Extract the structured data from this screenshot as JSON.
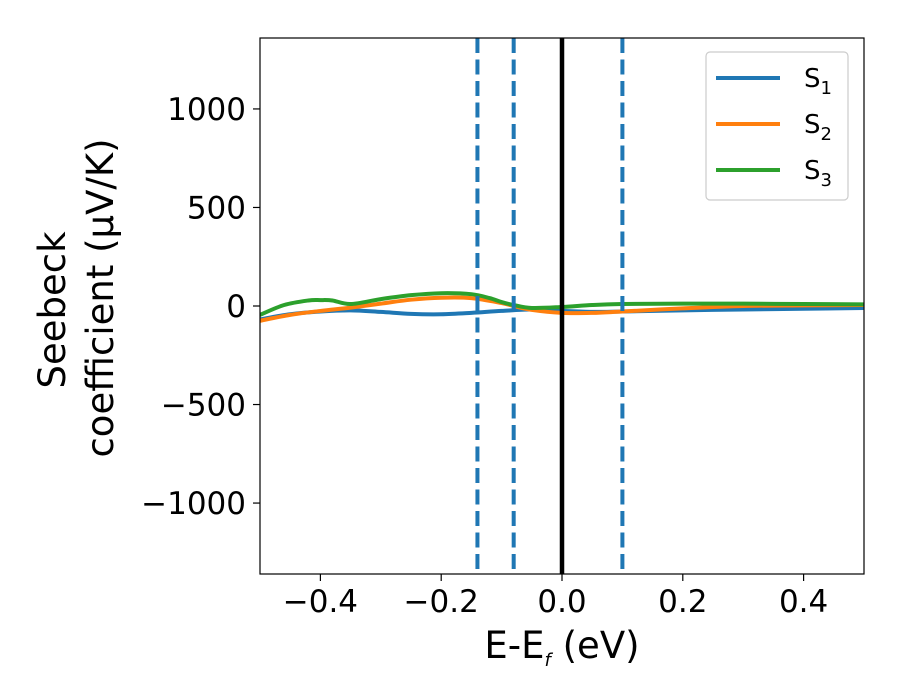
{
  "chart_data": {
    "type": "line",
    "xlabel": {
      "main": "E-E",
      "sub": "f",
      "unit": " (eV)"
    },
    "ylabel_line1": "Seebeck",
    "ylabel_line2": "coefficient  (μV/K)",
    "xlim": [
      -0.5,
      0.5
    ],
    "ylim": [
      -1360,
      1360
    ],
    "xticks": [
      -0.4,
      -0.2,
      0.0,
      0.2,
      0.4
    ],
    "xtick_labels": [
      "−0.4",
      "−0.2",
      "0.0",
      "0.2",
      "0.4"
    ],
    "yticks": [
      -1000,
      -500,
      0,
      500,
      1000
    ],
    "ytick_labels": [
      "−1000",
      "−500",
      "0",
      "500",
      "1000"
    ],
    "grid": false,
    "legend_position": "top-right",
    "colors": {
      "S1": "#1f77b4",
      "S2": "#ff7f0e",
      "S3": "#2ca02c",
      "zero_line": "#000000",
      "dashed": "#1f77b4"
    },
    "vertical_lines": [
      {
        "x": -0.14,
        "style": "dashed",
        "color": "#1f77b4"
      },
      {
        "x": -0.08,
        "style": "dashed",
        "color": "#1f77b4"
      },
      {
        "x": 0.0,
        "style": "solid",
        "color": "#000000"
      },
      {
        "x": 0.1,
        "style": "dashed",
        "color": "#1f77b4"
      }
    ],
    "series": [
      {
        "name": "S1",
        "label_main": "S",
        "label_sub": "1",
        "color": "#1f77b4",
        "x": [
          -0.5,
          -0.45,
          -0.4,
          -0.35,
          -0.3,
          -0.25,
          -0.2,
          -0.15,
          -0.1,
          -0.05,
          0.0,
          0.05,
          0.1,
          0.2,
          0.3,
          0.4,
          0.5
        ],
        "y": [
          -68,
          -42,
          -28,
          -22,
          -30,
          -40,
          -42,
          -35,
          -25,
          -18,
          -25,
          -30,
          -28,
          -22,
          -18,
          -14,
          -10
        ]
      },
      {
        "name": "S2",
        "label_main": "S",
        "label_sub": "2",
        "color": "#ff7f0e",
        "x": [
          -0.5,
          -0.45,
          -0.4,
          -0.35,
          -0.3,
          -0.25,
          -0.2,
          -0.15,
          -0.1,
          -0.08,
          -0.05,
          0.0,
          0.05,
          0.1,
          0.2,
          0.3,
          0.4,
          0.5
        ],
        "y": [
          -75,
          -45,
          -25,
          -8,
          12,
          32,
          42,
          40,
          15,
          0,
          -20,
          -35,
          -35,
          -28,
          -12,
          0,
          3,
          5
        ]
      },
      {
        "name": "S3",
        "label_main": "S",
        "label_sub": "3",
        "color": "#2ca02c",
        "x": [
          -0.5,
          -0.46,
          -0.42,
          -0.4,
          -0.38,
          -0.35,
          -0.3,
          -0.25,
          -0.2,
          -0.15,
          -0.12,
          -0.1,
          -0.08,
          -0.05,
          0.0,
          0.05,
          0.1,
          0.2,
          0.3,
          0.4,
          0.5
        ],
        "y": [
          -45,
          5,
          28,
          30,
          28,
          10,
          35,
          55,
          65,
          60,
          40,
          20,
          5,
          -10,
          -5,
          5,
          10,
          12,
          12,
          10,
          8
        ]
      }
    ]
  }
}
